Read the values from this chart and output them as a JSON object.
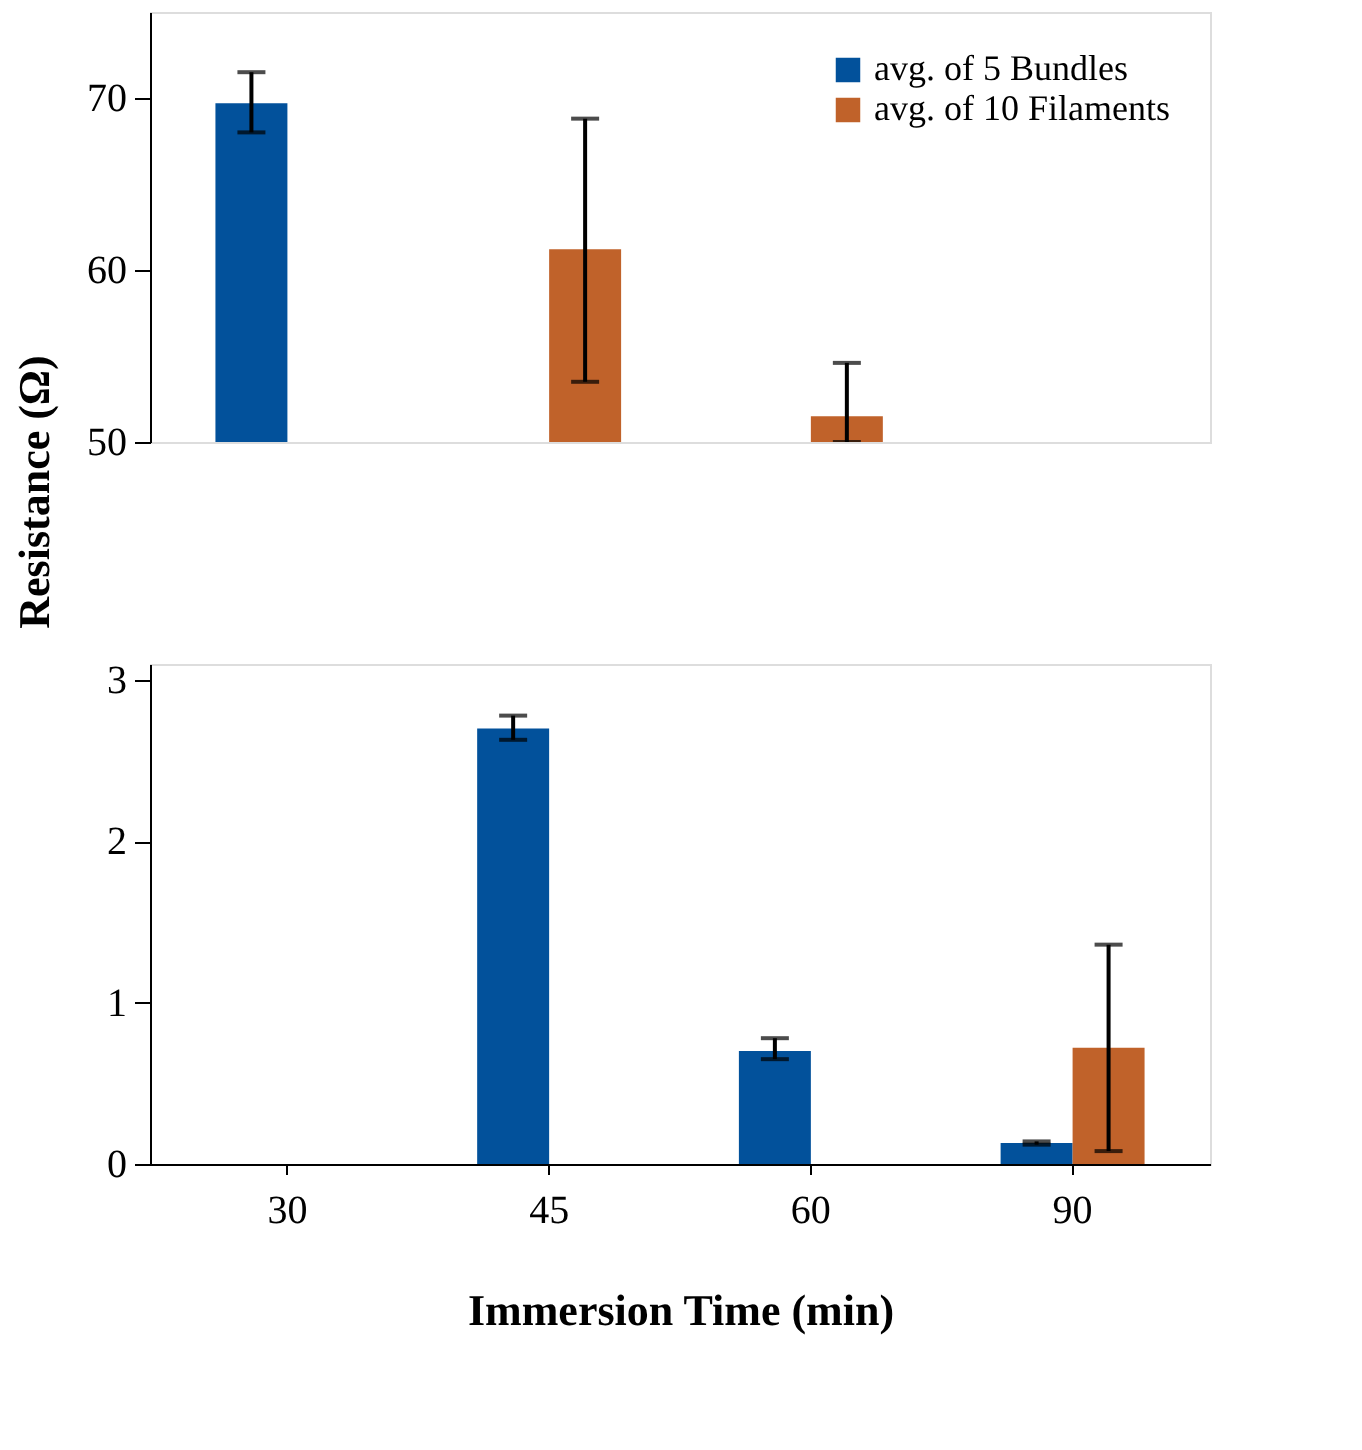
{
  "chart_data": [
    {
      "type": "bar",
      "categories": [
        "30",
        "45",
        "60",
        "90"
      ],
      "ylim": [
        50,
        75
      ],
      "yticks": [
        50,
        60,
        70
      ],
      "ylabel": "Resistance (Ω)",
      "tick_labels": "y",
      "legend": "top right",
      "grid": false,
      "series": [
        {
          "name": "avg. of 5 Bundles",
          "color": "#02519b",
          "values": [
            69.7,
            null,
            null,
            null
          ],
          "errors": [
            [
              68.0,
              71.5
            ],
            null,
            null,
            null
          ]
        },
        {
          "name": "avg. of 10 Filaments",
          "color": "#c0622a",
          "values": [
            null,
            61.2,
            51.5,
            null
          ],
          "errors": [
            null,
            [
              53.5,
              68.8
            ],
            [
              50.0,
              54.6
            ],
            null
          ]
        }
      ]
    },
    {
      "type": "bar",
      "categories": [
        "30",
        "45",
        "60",
        "90"
      ],
      "ylim": [
        0,
        3.1
      ],
      "yticks": [
        0,
        1,
        2,
        3
      ],
      "xlabel": "Immersion Time (min)",
      "legend": false,
      "grid": false,
      "series": [
        {
          "color": "#02519b",
          "values": [
            null,
            2.7,
            0.7,
            0.13
          ],
          "errors": [
            null,
            [
              2.63,
              2.78
            ],
            [
              0.65,
              0.78
            ],
            [
              0.12,
              0.14
            ]
          ]
        },
        {
          "color": "#c0622a",
          "values": [
            null,
            null,
            null,
            0.72
          ],
          "errors": [
            null,
            null,
            null,
            [
              0.08,
              1.36
            ]
          ]
        }
      ]
    }
  ]
}
